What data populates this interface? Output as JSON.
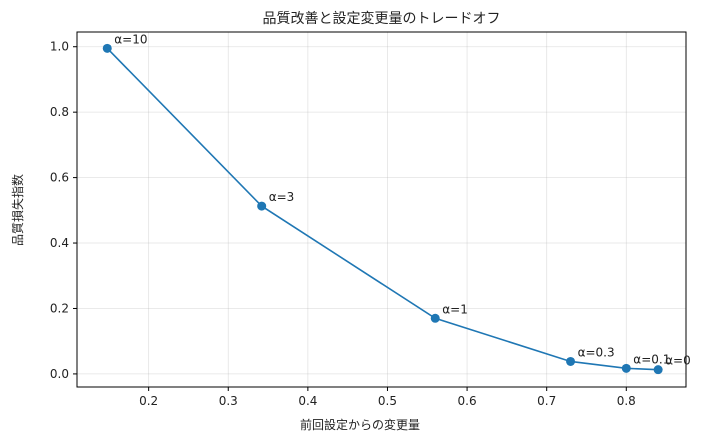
{
  "chart_data": {
    "type": "line",
    "title": "品質改善と設定変更量のトレードオフ",
    "xlabel": "前回設定からの変更量",
    "ylabel": "品質損失指数",
    "xlim": [
      0.11,
      0.875
    ],
    "ylim": [
      -0.04,
      1.045
    ],
    "xticks": [
      0.2,
      0.3,
      0.4,
      0.5,
      0.6,
      0.7,
      0.8
    ],
    "xtick_labels": [
      "0.2",
      "0.3",
      "0.4",
      "0.5",
      "0.6",
      "0.7",
      "0.8"
    ],
    "yticks": [
      0.0,
      0.2,
      0.4,
      0.6,
      0.8,
      1.0
    ],
    "ytick_labels": [
      "0.0",
      "0.2",
      "0.4",
      "0.6",
      "0.8",
      "1.0"
    ],
    "grid": true,
    "color": "#1f77b4",
    "series": [
      {
        "points": [
          {
            "x": 0.148,
            "y": 0.995,
            "label": "α=10"
          },
          {
            "x": 0.342,
            "y": 0.513,
            "label": "α=3"
          },
          {
            "x": 0.56,
            "y": 0.17,
            "label": "α=1"
          },
          {
            "x": 0.73,
            "y": 0.038,
            "label": "α=0.3"
          },
          {
            "x": 0.8,
            "y": 0.017,
            "label": "α=0.1"
          },
          {
            "x": 0.84,
            "y": 0.013,
            "label": "α=0"
          }
        ]
      }
    ]
  }
}
